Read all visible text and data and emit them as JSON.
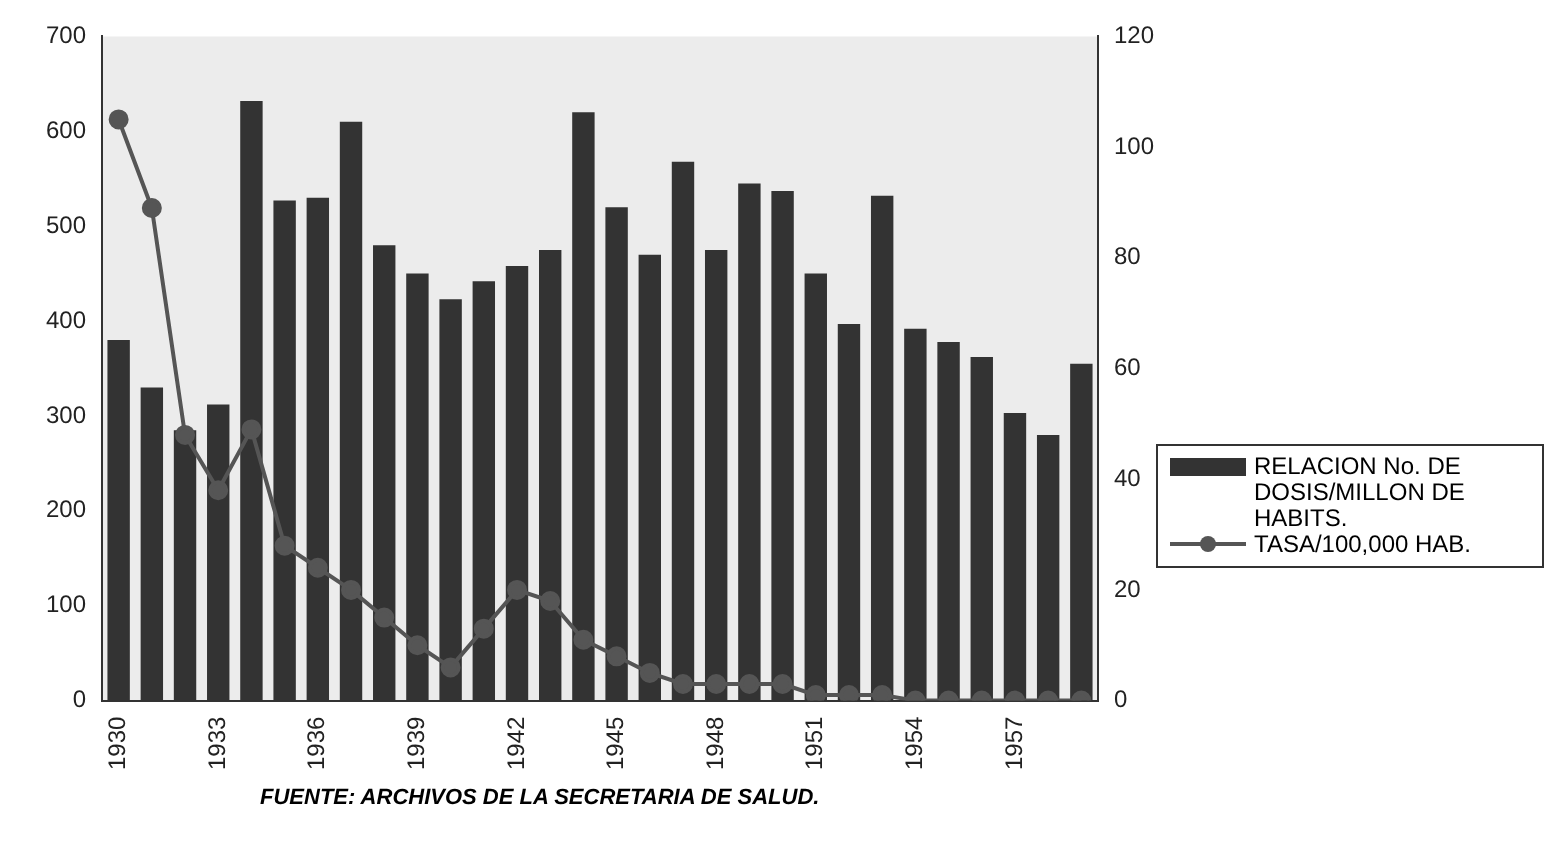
{
  "chart_data": {
    "type": "bar",
    "categories": [
      "1930",
      null,
      null,
      "1933",
      null,
      null,
      "1936",
      null,
      null,
      "1939",
      null,
      null,
      "1942",
      null,
      null,
      "1945",
      null,
      null,
      "1948",
      null,
      null,
      "1951",
      null,
      null,
      "1954",
      null,
      null,
      "1957",
      null,
      null
    ],
    "series": [
      {
        "name": "RELACION No. DE DOSIS/MILLON DE HABITS.",
        "color": "#333333",
        "values": [
          380,
          330,
          285,
          312,
          632,
          527,
          530,
          610,
          480,
          450,
          423,
          442,
          458,
          475,
          620,
          520,
          470,
          568,
          475,
          545,
          537,
          450,
          397,
          532,
          392,
          378,
          362,
          303,
          280,
          355
        ]
      },
      {
        "name": "TASA/100,000 HAB.",
        "type": "line",
        "axis": "y2",
        "color": "#555555",
        "values": [
          105,
          89,
          48,
          38,
          49,
          28,
          24,
          20,
          15,
          10,
          6,
          13,
          20,
          18,
          11,
          8,
          5,
          3,
          3,
          3,
          3,
          1,
          1,
          1,
          0,
          0,
          0,
          0,
          0,
          0
        ]
      }
    ],
    "ylim": [
      0,
      700
    ],
    "yticks": [
      0,
      100,
      200,
      300,
      400,
      500,
      600,
      700
    ],
    "y2lim": [
      0,
      120
    ],
    "y2ticks": [
      0,
      20,
      40,
      60,
      80,
      100,
      120
    ],
    "grid": false,
    "legend": "right",
    "marker": "circle",
    "line_style": "solid",
    "annotations": [
      "FUENTE: ARCHIVOS DE LA SECRETARIA DE SALUD."
    ]
  }
}
